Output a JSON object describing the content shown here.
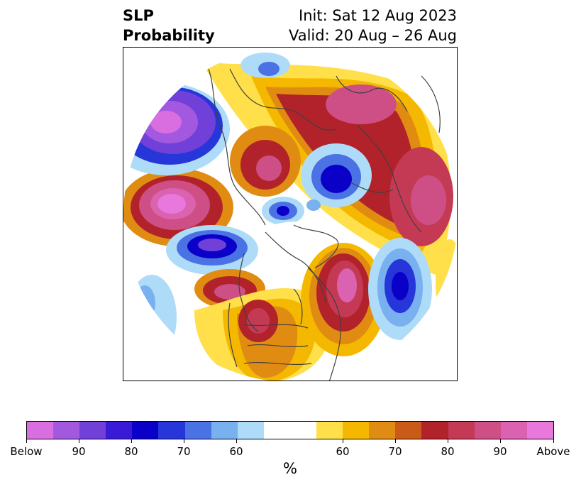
{
  "title": {
    "left_line1": "SLP",
    "left_line2": "Probability",
    "init": "Init: Sat 12 Aug 2023",
    "valid": "Valid: 20 Aug – 26 Aug"
  },
  "colorbar": {
    "unit": "%",
    "colors": [
      "#d86ee0",
      "#a359df",
      "#7040d8",
      "#3a1ad6",
      "#0a00c8",
      "#2636d8",
      "#4a72e4",
      "#78b0f0",
      "#aedcf8",
      "#ffffff",
      "#ffe04a",
      "#f5b800",
      "#e08c12",
      "#c95a18",
      "#b2222a",
      "#c43a55",
      "#cd4f85",
      "#da62b0",
      "#e878dc"
    ],
    "tick_labels": [
      "Below",
      "90",
      "80",
      "70",
      "60",
      "60",
      "70",
      "80",
      "90",
      "Above"
    ]
  },
  "colors": {
    "below_strong": "#d86ee0",
    "below_blue": "#0a00c8",
    "above_red": "#b2222a",
    "above_strong": "#e878dc",
    "coastline": "#404040"
  }
}
